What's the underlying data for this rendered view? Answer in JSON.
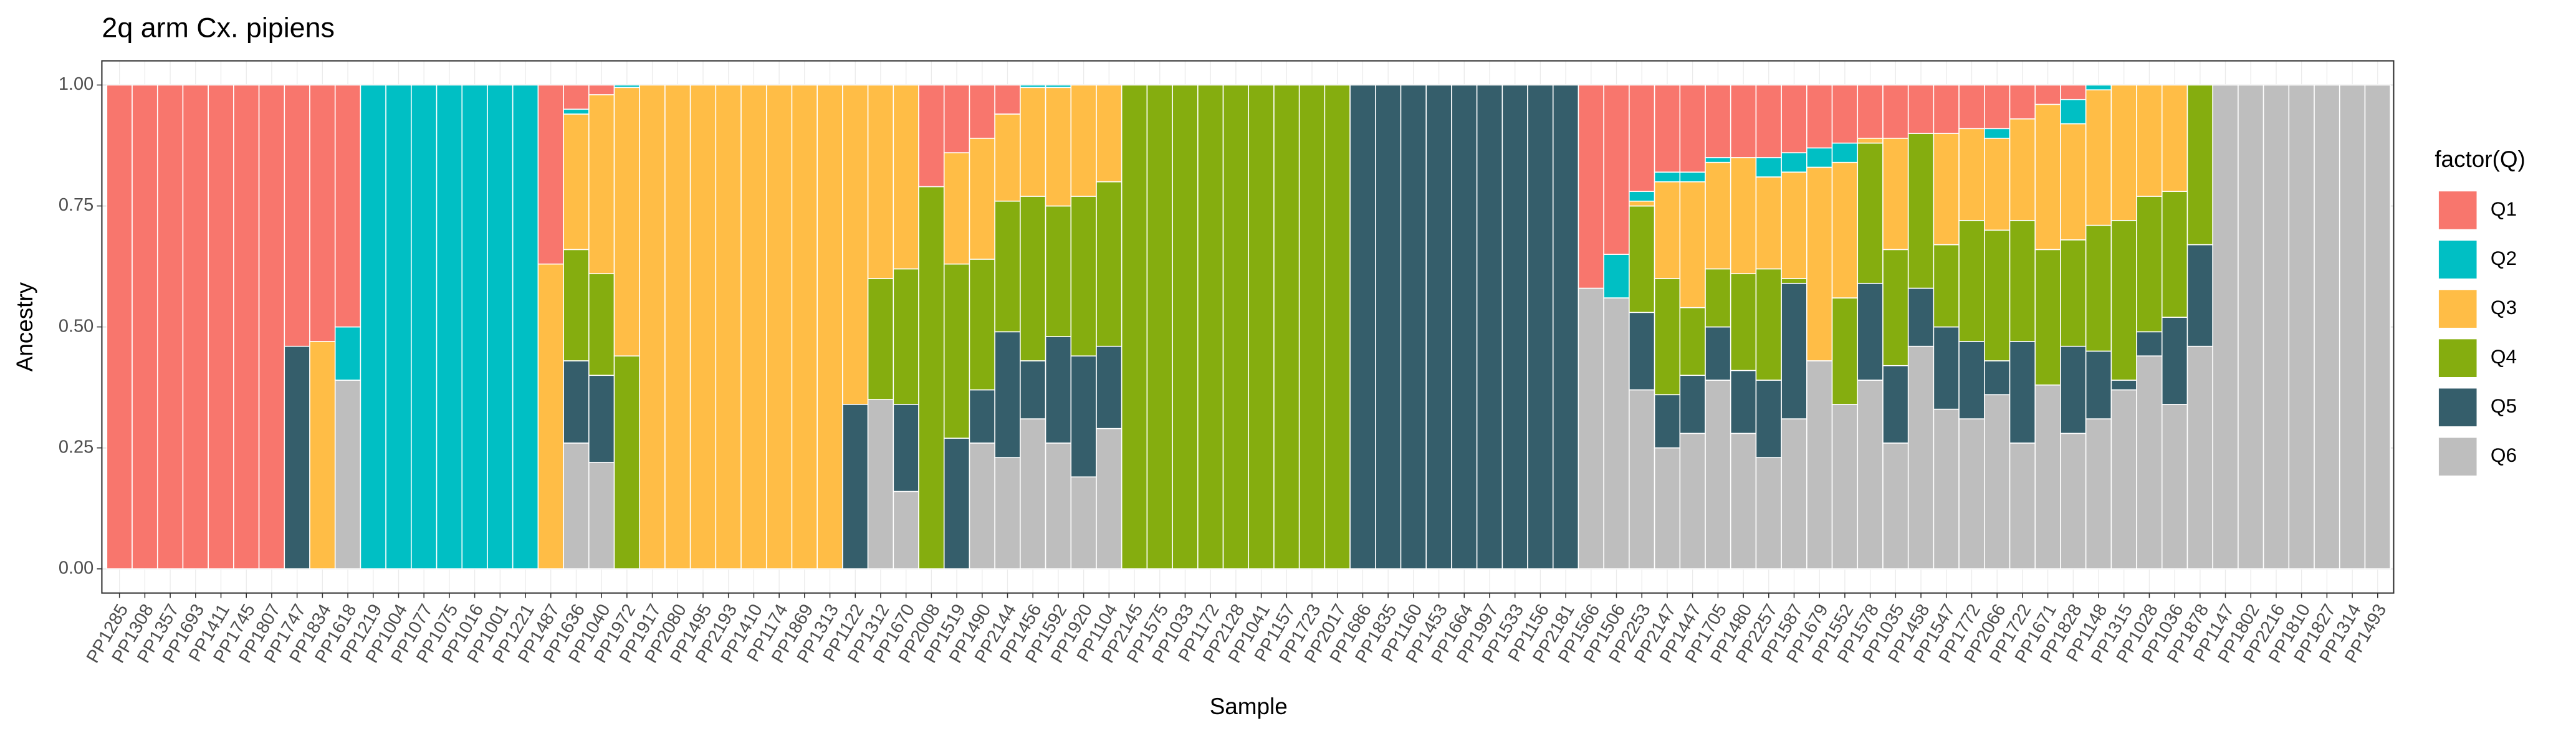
{
  "chart_data": {
    "type": "stacked_bar",
    "title": "2q arm Cx. pipiens",
    "x_label": "Sample",
    "y_label": "Ancestry",
    "legend_title": "factor(Q)",
    "legend_position": "right",
    "grid": true,
    "categories": [
      "PP1285",
      "PP1308",
      "PP1357",
      "PP1693",
      "PP1411",
      "PP1745",
      "PP1807",
      "PP1747",
      "PP1834",
      "PP1618",
      "PP1219",
      "PP1004",
      "PP1077",
      "PP1075",
      "PP1016",
      "PP1001",
      "PP1221",
      "PP1487",
      "PP1636",
      "PP1040",
      "PP1972",
      "PP1917",
      "PP2080",
      "PP1495",
      "PP2193",
      "PP1410",
      "PP1174",
      "PP1869",
      "PP1313",
      "PP1122",
      "PP1312",
      "PP1670",
      "PP2008",
      "PP1519",
      "PP1490",
      "PP2144",
      "PP1456",
      "PP1592",
      "PP1920",
      "PP1104",
      "PP2145",
      "PP1575",
      "PP1033",
      "PP1172",
      "PP2128",
      "PP1041",
      "PP1157",
      "PP1723",
      "PP2017",
      "PP1686",
      "PP1835",
      "PP1160",
      "PP1453",
      "PP1664",
      "PP1997",
      "PP1533",
      "PP1156",
      "PP2181",
      "PP1566",
      "PP1506",
      "PP2253",
      "PP2147",
      "PP1447",
      "PP1705",
      "PP1480",
      "PP2257",
      "PP1587",
      "PP1679",
      "PP1552",
      "PP1578",
      "PP1035",
      "PP1458",
      "PP1547",
      "PP1772",
      "PP2066",
      "PP1722",
      "PP1671",
      "PP1828",
      "PP1148",
      "PP1315",
      "PP1028",
      "PP1036",
      "PP1878",
      "PP1147",
      "PP1802",
      "PP2216",
      "PP1810",
      "PP1827",
      "PP1314",
      "PP1493"
    ],
    "series": [
      {
        "name": "Q1",
        "color": "#f8766d",
        "values": [
          1,
          1,
          1,
          1,
          1,
          1,
          1,
          0.54,
          0.53,
          0.5,
          0,
          0,
          0,
          0,
          0,
          0,
          0,
          0.37,
          0.05,
          0.02,
          0,
          0,
          0,
          0,
          0,
          0,
          0,
          0,
          0,
          0,
          0,
          0,
          0.21,
          0.14,
          0.11,
          0.06,
          0,
          0,
          0,
          0,
          0,
          0,
          0,
          0,
          0,
          0,
          0,
          0,
          0,
          0,
          0,
          0,
          0,
          0,
          0,
          0,
          0,
          0,
          0.42,
          0.35,
          0.22,
          0.18,
          0.18,
          0.15,
          0.15,
          0.15,
          0.14,
          0.13,
          0.12,
          0.11,
          0.11,
          0.1,
          0.1,
          0.09,
          0.09,
          0.07,
          0.04,
          0.03,
          0,
          0,
          0,
          0,
          0,
          0,
          0,
          0,
          0,
          0,
          0,
          0
        ]
      },
      {
        "name": "Q2",
        "color": "#00bfc4",
        "values": [
          0,
          0,
          0,
          0,
          0,
          0,
          0,
          0,
          0,
          0.11,
          1,
          1,
          1,
          1,
          1,
          1,
          1,
          0,
          0.01,
          0,
          0.005,
          0,
          0,
          0,
          0,
          0,
          0,
          0,
          0,
          0,
          0,
          0,
          0,
          0,
          0,
          0,
          0.005,
          0.005,
          0,
          0,
          0,
          0,
          0,
          0,
          0,
          0,
          0,
          0,
          0,
          0,
          0,
          0,
          0,
          0,
          0,
          0,
          0,
          0,
          0,
          0.09,
          0.02,
          0.02,
          0.02,
          0.01,
          0,
          0.04,
          0.04,
          0.04,
          0.04,
          0,
          0,
          0,
          0,
          0,
          0.02,
          0,
          0,
          0.05,
          0.01,
          0,
          0,
          0,
          0,
          0,
          0,
          0,
          0,
          0,
          0,
          0
        ]
      },
      {
        "name": "Q3",
        "color": "#ffbd46",
        "values": [
          0,
          0,
          0,
          0,
          0,
          0,
          0,
          0,
          0.47,
          0,
          0,
          0,
          0,
          0,
          0,
          0,
          0,
          0.63,
          0.28,
          0.37,
          0.555,
          1,
          1,
          1,
          1,
          1,
          1,
          1,
          1,
          0.66,
          0.4,
          0.38,
          0,
          0.23,
          0.25,
          0.18,
          0.225,
          0.245,
          0.23,
          0.2,
          0,
          0,
          0,
          0,
          0,
          0,
          0,
          0,
          0,
          0,
          0,
          0,
          0,
          0,
          0,
          0,
          0,
          0,
          0,
          0,
          0.01,
          0.2,
          0.26,
          0.22,
          0.24,
          0.19,
          0.22,
          0.4,
          0.28,
          0.01,
          0.23,
          0,
          0.23,
          0.19,
          0.19,
          0.21,
          0.3,
          0.24,
          0.28,
          0.28,
          0.23,
          0.22,
          0,
          0,
          0,
          0,
          0,
          0,
          0,
          0
        ]
      },
      {
        "name": "Q4",
        "color": "#85ad0f",
        "values": [
          0,
          0,
          0,
          0,
          0,
          0,
          0,
          0,
          0,
          0,
          0,
          0,
          0,
          0,
          0,
          0,
          0,
          0,
          0.23,
          0.21,
          0.44,
          0,
          0,
          0,
          0,
          0,
          0,
          0,
          0,
          0,
          0.25,
          0.28,
          0.79,
          0.36,
          0.27,
          0.27,
          0.34,
          0.27,
          0.33,
          0.34,
          1,
          1,
          1,
          1,
          1,
          1,
          1,
          1,
          1,
          0,
          0,
          0,
          0,
          0,
          0,
          0,
          0,
          0,
          0,
          0,
          0.22,
          0.24,
          0.14,
          0.12,
          0.2,
          0.23,
          0.01,
          0,
          0.22,
          0.29,
          0.24,
          0.32,
          0.17,
          0.25,
          0.27,
          0.25,
          0.28,
          0.22,
          0.26,
          0.33,
          0.28,
          0.26,
          0.33,
          0,
          0,
          0,
          0,
          0,
          0,
          0
        ]
      },
      {
        "name": "Q5",
        "color": "#355e6b",
        "values": [
          0,
          0,
          0,
          0,
          0,
          0,
          0,
          0.46,
          0,
          0,
          0,
          0,
          0,
          0,
          0,
          0,
          0,
          0,
          0.17,
          0.18,
          0,
          0,
          0,
          0,
          0,
          0,
          0,
          0,
          0,
          0.34,
          0,
          0.18,
          0,
          0.27,
          0.11,
          0.26,
          0.12,
          0.22,
          0.25,
          0.17,
          0,
          0,
          0,
          0,
          0,
          0,
          0,
          0,
          0,
          1,
          1,
          1,
          1,
          1,
          1,
          1,
          1,
          1,
          0,
          0,
          0.16,
          0.11,
          0.12,
          0.11,
          0.13,
          0.16,
          0.28,
          0,
          0,
          0.2,
          0.16,
          0.12,
          0.17,
          0.16,
          0.07,
          0.21,
          0,
          0.18,
          0.14,
          0.02,
          0.05,
          0.18,
          0.21,
          0,
          0,
          0,
          0,
          0,
          0,
          0
        ]
      },
      {
        "name": "Q6",
        "color": "#bebebe",
        "values": [
          0,
          0,
          0,
          0,
          0,
          0,
          0,
          0,
          0,
          0.39,
          0,
          0,
          0,
          0,
          0,
          0,
          0,
          0,
          0.26,
          0.22,
          0,
          0,
          0,
          0,
          0,
          0,
          0,
          0,
          0,
          0,
          0.35,
          0.16,
          0,
          0,
          0.26,
          0.23,
          0.31,
          0.26,
          0.19,
          0.29,
          0,
          0,
          0,
          0,
          0,
          0,
          0,
          0,
          0,
          0,
          0,
          0,
          0,
          0,
          0,
          0,
          0,
          0,
          0.58,
          0.56,
          0.37,
          0.25,
          0.28,
          0.39,
          0.28,
          0.23,
          0.31,
          0.43,
          0.34,
          0.39,
          0.26,
          0.46,
          0.33,
          0.31,
          0.36,
          0.26,
          0.38,
          0.28,
          0.31,
          0.37,
          0.44,
          0.34,
          0.46,
          1,
          1,
          1,
          1,
          1,
          1,
          1
        ]
      }
    ],
    "ylim": [
      -0.05,
      1.05
    ],
    "yticks": [
      {
        "value": 0,
        "label": "0.00"
      },
      {
        "value": 0.25,
        "label": "0.25"
      },
      {
        "value": 0.5,
        "label": "0.50"
      },
      {
        "value": 0.75,
        "label": "0.75"
      },
      {
        "value": 1,
        "label": "1.00"
      }
    ]
  }
}
